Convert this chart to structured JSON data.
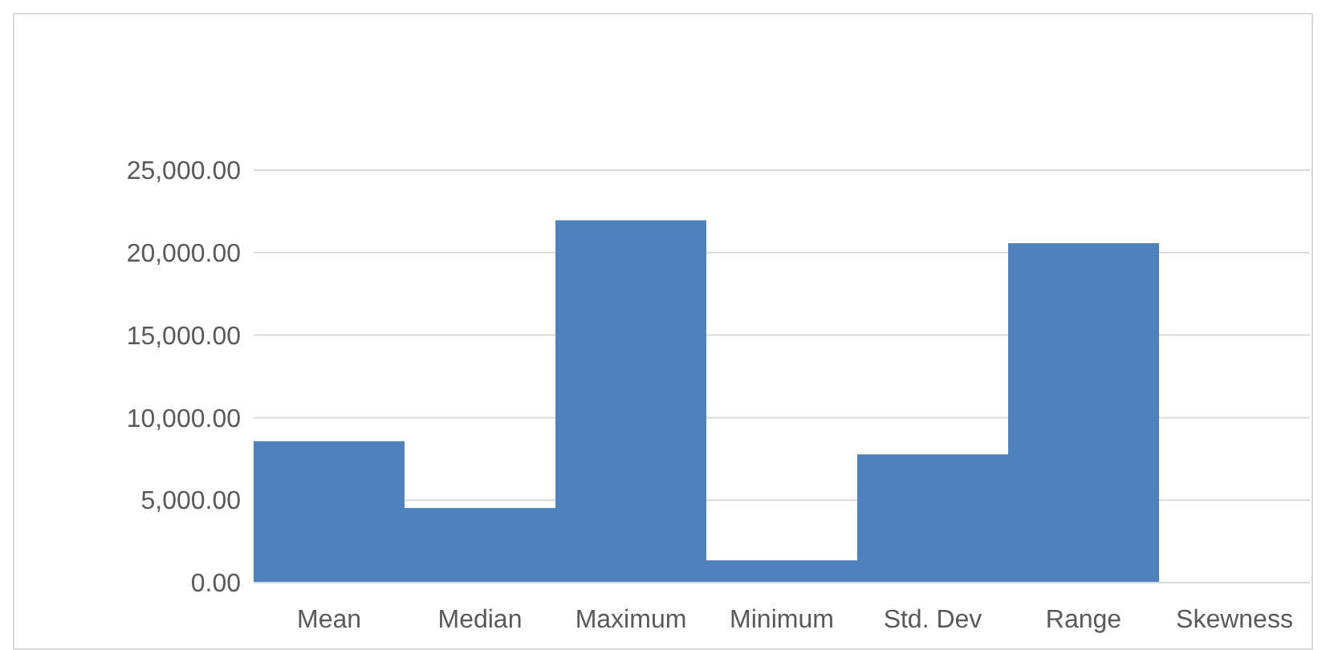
{
  "chart_data": {
    "type": "bar",
    "categories": [
      "Mean",
      "Median",
      "Maximum",
      "Minimum",
      "Std. Dev",
      "Range",
      "Skewness"
    ],
    "values": [
      8570,
      4520,
      21960,
      1350,
      7770,
      20570,
      0
    ],
    "color": "#4f81bd",
    "ylim": [
      0,
      25000
    ],
    "yticks": [
      {
        "value": 0,
        "label": "0.00"
      },
      {
        "value": 5000,
        "label": "5,000.00"
      },
      {
        "value": 10000,
        "label": "10,000.00"
      },
      {
        "value": 15000,
        "label": "15,000.00"
      },
      {
        "value": 20000,
        "label": "20,000.00"
      },
      {
        "value": 25000,
        "label": "25,000.00"
      }
    ],
    "grid": "y"
  }
}
